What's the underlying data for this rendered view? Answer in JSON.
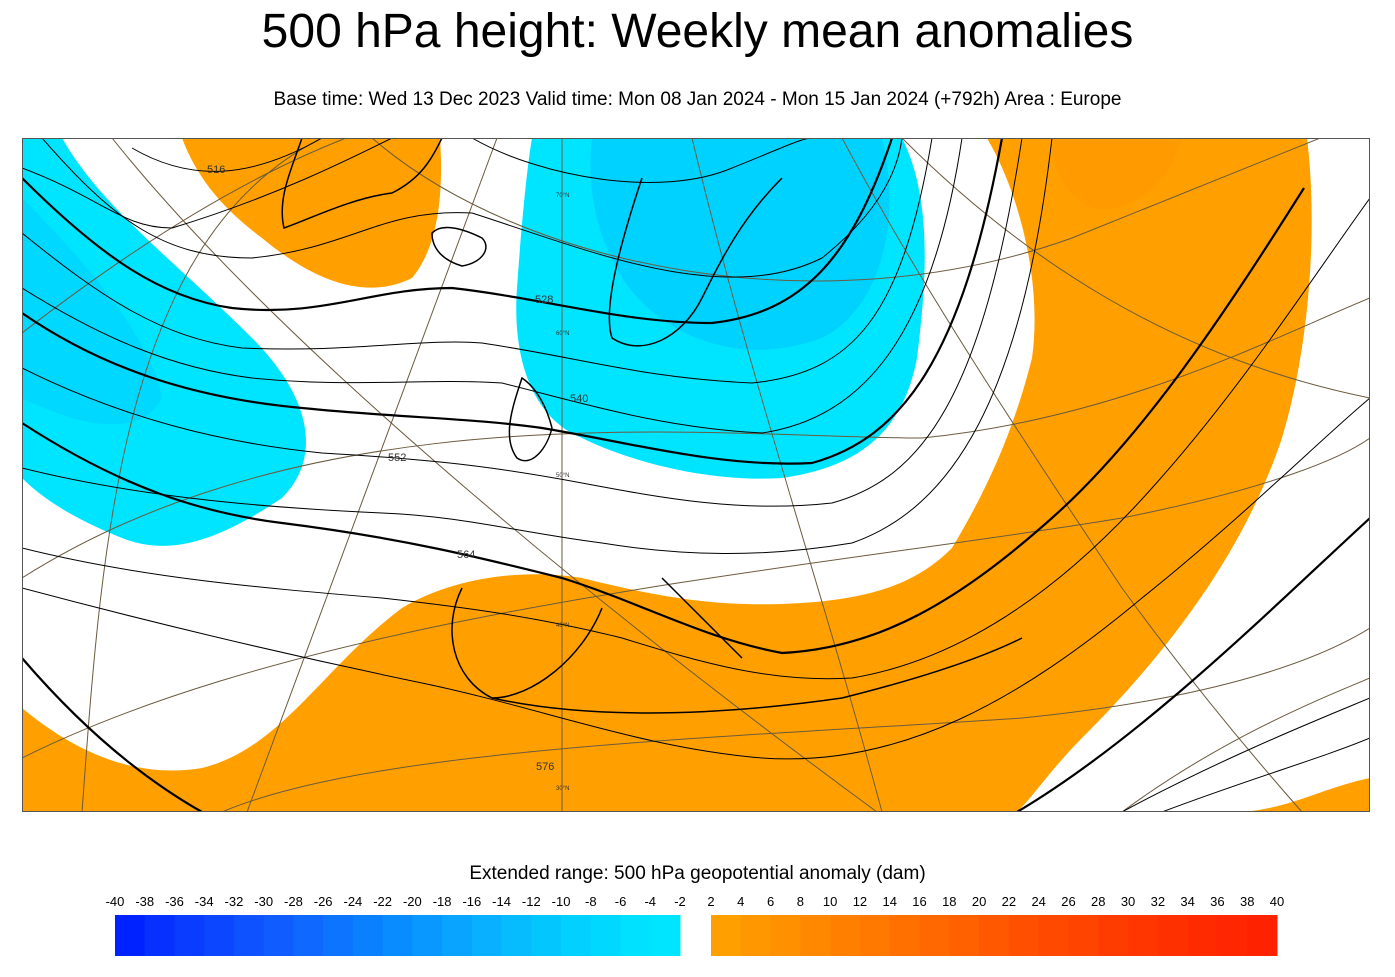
{
  "title": "500 hPa height: Weekly mean anomalies",
  "subtitle": "Base time: Wed 13 Dec 2023 Valid time: Mon 08 Jan 2024 - Mon 15 Jan 2024 (+792h) Area : Europe",
  "map": {
    "contour_labels": [
      "516",
      "528",
      "540",
      "552",
      "564",
      "576"
    ],
    "latitude_labels": [
      "70°N",
      "60°N",
      "50°N",
      "40°N",
      "30°N"
    ],
    "colors": {
      "neg_weak": "#00e5ff",
      "neg_mod": "#00d2ff",
      "pos_weak": "#ffa000",
      "contour": "#000000",
      "graticule": "#6b5a3e"
    }
  },
  "colorbar": {
    "title": "Extended range: 500 hPa geopotential anomaly (dam)",
    "negative_ticks": [
      "-40",
      "-38",
      "-36",
      "-34",
      "-32",
      "-30",
      "-28",
      "-26",
      "-24",
      "-22",
      "-20",
      "-18",
      "-16",
      "-14",
      "-12",
      "-10",
      "-8",
      "-6",
      "-4",
      "-2"
    ],
    "positive_ticks": [
      "2",
      "4",
      "6",
      "8",
      "10",
      "12",
      "14",
      "16",
      "18",
      "20",
      "22",
      "24",
      "26",
      "28",
      "30",
      "32",
      "34",
      "36",
      "38",
      "40"
    ],
    "negative_colors": [
      "#0022ff",
      "#0530ff",
      "#0a3cff",
      "#0c46ff",
      "#0e52ff",
      "#105cff",
      "#0f68ff",
      "#0c74ff",
      "#0a80ff",
      "#088cff",
      "#0898ff",
      "#08a4ff",
      "#08b0ff",
      "#06bcff",
      "#04c6ff",
      "#02d0ff",
      "#00d8ff",
      "#00e0ff",
      "#00e5ff"
    ],
    "positive_colors": [
      "#ffa000",
      "#ff9800",
      "#ff9000",
      "#ff8800",
      "#ff8000",
      "#ff7800",
      "#ff7000",
      "#ff6800",
      "#ff6000",
      "#ff5800",
      "#ff5000",
      "#ff4800",
      "#ff4400",
      "#ff3c00",
      "#ff3600",
      "#ff3000",
      "#ff2a00",
      "#ff2600",
      "#ff2200"
    ]
  }
}
